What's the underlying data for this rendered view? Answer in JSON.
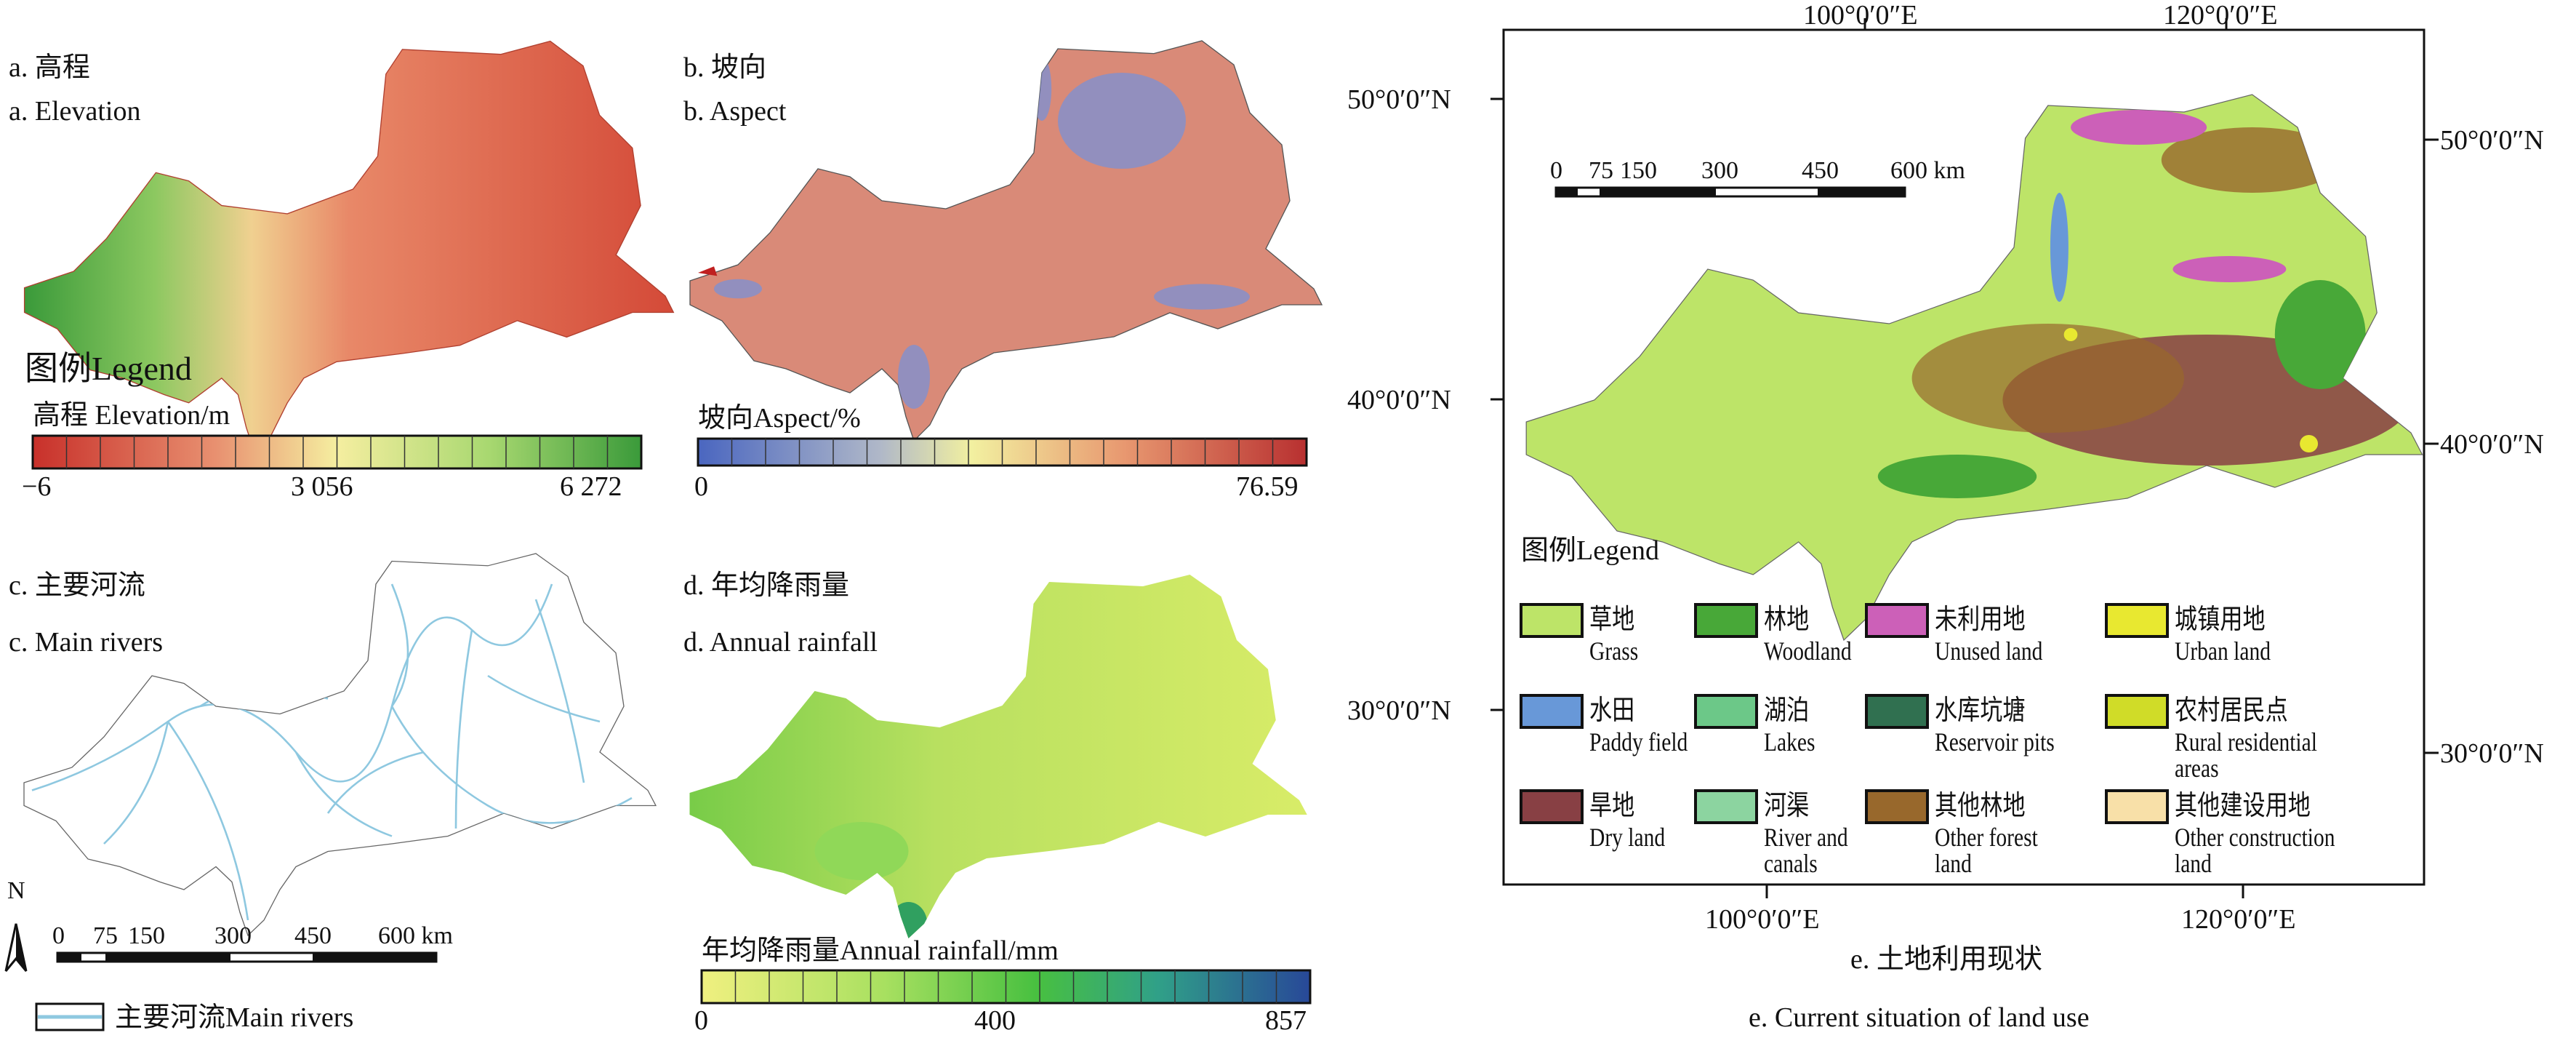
{
  "panel_a": {
    "title_cn": "a. 高程",
    "title_en": "a. Elevation",
    "legend_title": "图例Legend",
    "bar_label": "高程 Elevation/m",
    "ticks": [
      "−6",
      "3 056",
      "6 272"
    ],
    "colors": [
      "#c8302a",
      "#e07a60",
      "#f5e9a0",
      "#a8d870",
      "#3a9a3a"
    ]
  },
  "panel_b": {
    "title_cn": "b. 坡向",
    "title_en": "b. Aspect",
    "bar_label": "坡向Aspect/%",
    "ticks": [
      "0",
      "76.59"
    ],
    "colors": [
      "#4a66c0",
      "#b0b8c8",
      "#f2f0a0",
      "#e89870",
      "#b83030"
    ]
  },
  "panel_c": {
    "title_cn": "c. 主要河流",
    "title_en": "c. Main rivers",
    "north": "N",
    "scale_labels": [
      "0",
      "75",
      "150",
      "300",
      "450",
      "600 km"
    ],
    "legend_label": "主要河流Main rivers",
    "river_color": "#8ec8e0"
  },
  "panel_d": {
    "title_cn": "d. 年均降雨量",
    "title_en": "d. Annual rainfall",
    "bar_label": "年均降雨量Annual rainfall/mm",
    "ticks": [
      "0",
      "400",
      "857"
    ],
    "colors": [
      "#f0f080",
      "#a8e060",
      "#48c040",
      "#30a088",
      "#284898"
    ]
  },
  "panel_e": {
    "caption_cn": "e. 土地利用现状",
    "caption_en": "e. Current situation of land use",
    "lon_labels": [
      "100°0′0″E",
      "120°0′0″E"
    ],
    "lat_labels": [
      "50°0′0″N",
      "40°0′0″N",
      "30°0′0″N"
    ],
    "scale_labels": [
      "0",
      "75",
      "150",
      "300",
      "450",
      "600 km"
    ],
    "legend_title": "图例Legend",
    "legend": [
      {
        "cn": "草地",
        "en": "Grass",
        "color": "#bde468"
      },
      {
        "cn": "林地",
        "en": "Woodland",
        "color": "#48a838"
      },
      {
        "cn": "未利用地",
        "en": "Unused land",
        "color": "#cc60b8"
      },
      {
        "cn": "城镇用地",
        "en": "Urban land",
        "color": "#e8e830"
      },
      {
        "cn": "水田",
        "en": "Paddy field",
        "color": "#6898d8"
      },
      {
        "cn": "湖泊",
        "en": "Lakes",
        "color": "#6cc888"
      },
      {
        "cn": "水库坑塘",
        "en": "Reservoir pits",
        "color": "#307050"
      },
      {
        "cn": "农村居民点",
        "en": "Rural residential areas",
        "color": "#d0dc28"
      },
      {
        "cn": "旱地",
        "en": "Dry land",
        "color": "#884044"
      },
      {
        "cn": "河渠",
        "en": "River and canals",
        "color": "#8cd4a0"
      },
      {
        "cn": "其他林地",
        "en": "Other forest land",
        "color": "#98682c"
      },
      {
        "cn": "其他建设用地",
        "en": "Other construction land",
        "color": "#f8e0a8"
      }
    ]
  }
}
